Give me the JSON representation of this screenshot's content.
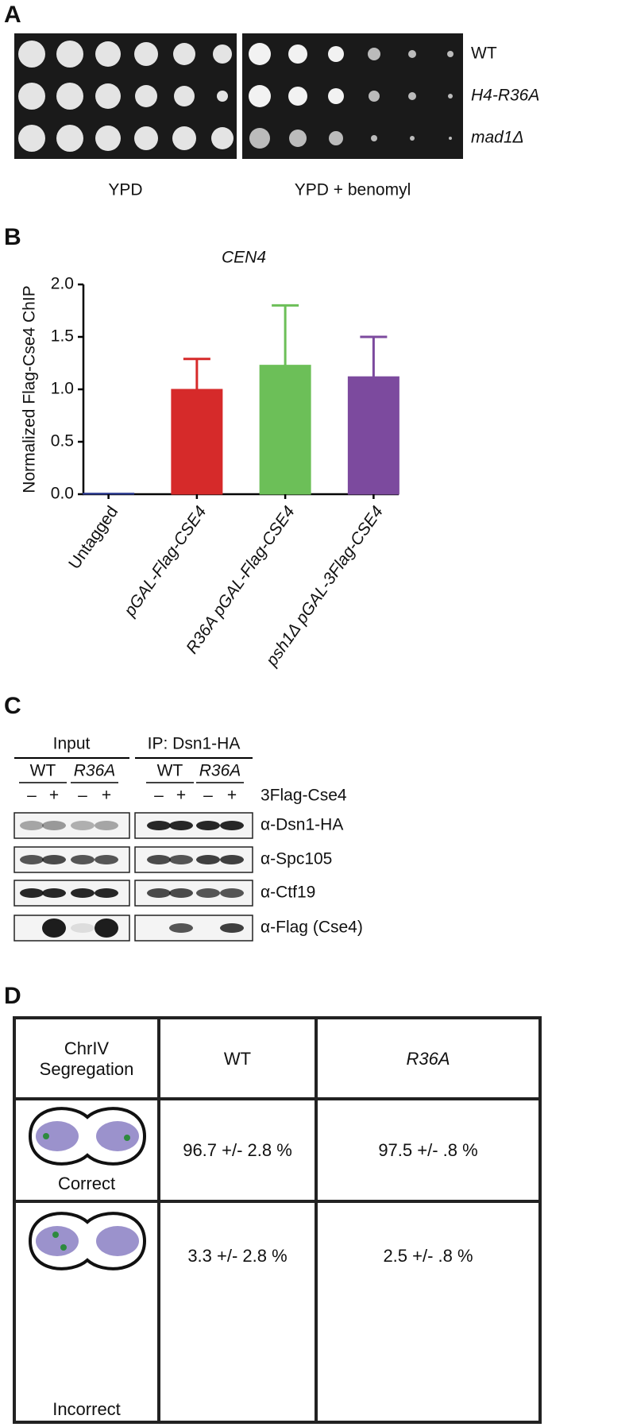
{
  "panel_a": {
    "label": "A",
    "strains": [
      "WT",
      "H4-R36A",
      "mad1Δ"
    ],
    "media": [
      "YPD",
      "YPD + benomyl"
    ]
  },
  "panel_b": {
    "label": "B"
  },
  "chart_data": {
    "type": "bar",
    "title": "CEN4",
    "y_label": "Normalized Flag-Cse4 ChIP",
    "categories": [
      "Untagged",
      "pGAL-Flag-CSE4",
      "R36A pGAL-Flag-CSE4",
      "psh1Δ pGAL-3Flag-CSE4"
    ],
    "values": [
      0.01,
      1.0,
      1.23,
      1.12
    ],
    "errors": [
      0,
      0.29,
      0.57,
      0.38
    ],
    "colors": [
      "#2b3990",
      "#d62a2a",
      "#6cbf58",
      "#7c4a9e"
    ],
    "ylim": [
      0,
      2.0
    ],
    "yticks": [
      {
        "value": 0,
        "label": "0.0"
      },
      0.5,
      {
        "value": 1,
        "label": "1.0"
      },
      1.5,
      {
        "value": 2,
        "label": "2.0"
      }
    ]
  },
  "panel_c": {
    "label": "C",
    "groups": [
      "Input",
      "IP: Dsn1-HA"
    ],
    "strains": [
      "WT",
      "R36A",
      "WT",
      "R36A"
    ],
    "signs": [
      "–",
      "+",
      "–",
      "+",
      "–",
      "+",
      "–",
      "+"
    ],
    "tag": "3Flag-Cse4",
    "antibodies": [
      "α-Dsn1-HA",
      "α-Spc105",
      "α-Ctf19",
      "α-Flag (Cse4)"
    ]
  },
  "panel_d": {
    "label": "D",
    "table": {
      "header": [
        "ChrIV Segregation",
        "WT",
        "R36A"
      ],
      "rows": [
        [
          "Correct",
          "96.7 +/- 2.8 %",
          "97.5 +/- .8 %"
        ],
        [
          "Incorrect",
          "3.3 +/- 2.8 %",
          "2.5 +/- .8 %"
        ]
      ]
    }
  }
}
